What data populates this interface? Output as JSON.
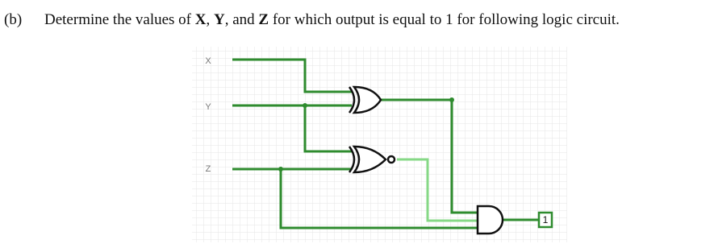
{
  "question": {
    "label": "(b)",
    "segments": [
      "Determine the values of ",
      "X",
      ", ",
      "Y",
      ", and ",
      "Z",
      " for which output is equal to 1 for following logic circuit."
    ]
  },
  "circuit": {
    "inputs": [
      "X",
      "Y",
      "Z"
    ],
    "output": "1"
  }
}
